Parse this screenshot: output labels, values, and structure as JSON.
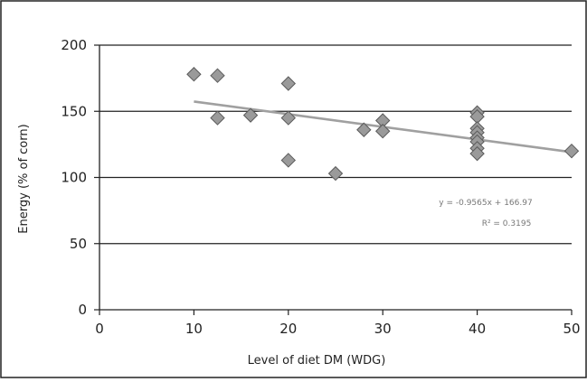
{
  "chart_data": {
    "type": "scatter",
    "xlabel": "Level of diet DM (WDG)",
    "ylabel": "Energy (% of corn)",
    "xlim": [
      0,
      50
    ],
    "ylim": [
      0,
      200
    ],
    "x_ticks": [
      "0",
      "10",
      "20",
      "30",
      "40",
      "50"
    ],
    "y_ticks": [
      "0",
      "50",
      "100",
      "150",
      "200"
    ],
    "grid": "horizontal",
    "marker": "diamond",
    "colors": {
      "marker_fill": "#9a9a9a",
      "marker_edge": "#5a5a5a",
      "trendline": "#a0a0a0"
    },
    "points": [
      {
        "x": 10,
        "y": 178
      },
      {
        "x": 12.5,
        "y": 177
      },
      {
        "x": 12.5,
        "y": 145
      },
      {
        "x": 16,
        "y": 147
      },
      {
        "x": 20,
        "y": 171
      },
      {
        "x": 20,
        "y": 145
      },
      {
        "x": 20,
        "y": 113
      },
      {
        "x": 25,
        "y": 103
      },
      {
        "x": 28,
        "y": 136
      },
      {
        "x": 30,
        "y": 143
      },
      {
        "x": 30,
        "y": 135
      },
      {
        "x": 40,
        "y": 149
      },
      {
        "x": 40,
        "y": 146
      },
      {
        "x": 40,
        "y": 137
      },
      {
        "x": 40,
        "y": 134
      },
      {
        "x": 40,
        "y": 130
      },
      {
        "x": 40,
        "y": 127
      },
      {
        "x": 40,
        "y": 122
      },
      {
        "x": 40,
        "y": 118
      },
      {
        "x": 50,
        "y": 120
      }
    ],
    "trendline": {
      "slope": -0.9565,
      "intercept": 166.97,
      "x_range": [
        10,
        50
      ]
    },
    "annotations": {
      "equation": "y = -0.9565x + 166.97",
      "r_squared": "R² = 0.3195"
    }
  }
}
